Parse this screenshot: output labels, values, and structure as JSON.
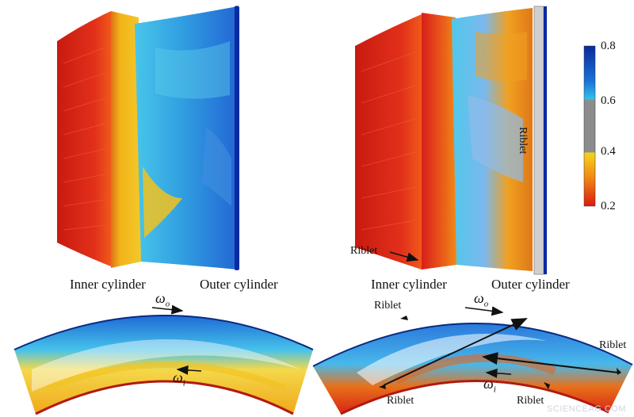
{
  "colorbar": {
    "ticks": [
      "0.8",
      "0.6",
      "0.4",
      "0.2"
    ],
    "stops": [
      "#0a2a9a",
      "#1565d8",
      "#29b6e6",
      "#8a8a8a",
      "#8a8a8a",
      "#f2c21a",
      "#f08a10",
      "#e02010"
    ]
  },
  "labels": {
    "inner_left": "Inner cylinder",
    "outer_left": "Outer cylinder",
    "inner_right": "Inner cylinder",
    "outer_right": "Outer cylinder",
    "riblet_vertical": "Riblet",
    "riblet_pointer": "Riblet",
    "riblet_top": "Riblet",
    "riblet_right": "Riblet",
    "riblet_bottom_left": "Riblet",
    "riblet_bottom_right": "Riblet"
  },
  "greek": {
    "omega": "ω",
    "o": "o",
    "i": "i"
  },
  "watermark": "SCIENCEAG.COM",
  "colors": {
    "red": "#d8261a",
    "orange": "#f0880f",
    "yellow": "#f2c81c",
    "cyan": "#38c0e8",
    "blue": "#1f5fd0",
    "darkblue": "#0b2fa0"
  }
}
